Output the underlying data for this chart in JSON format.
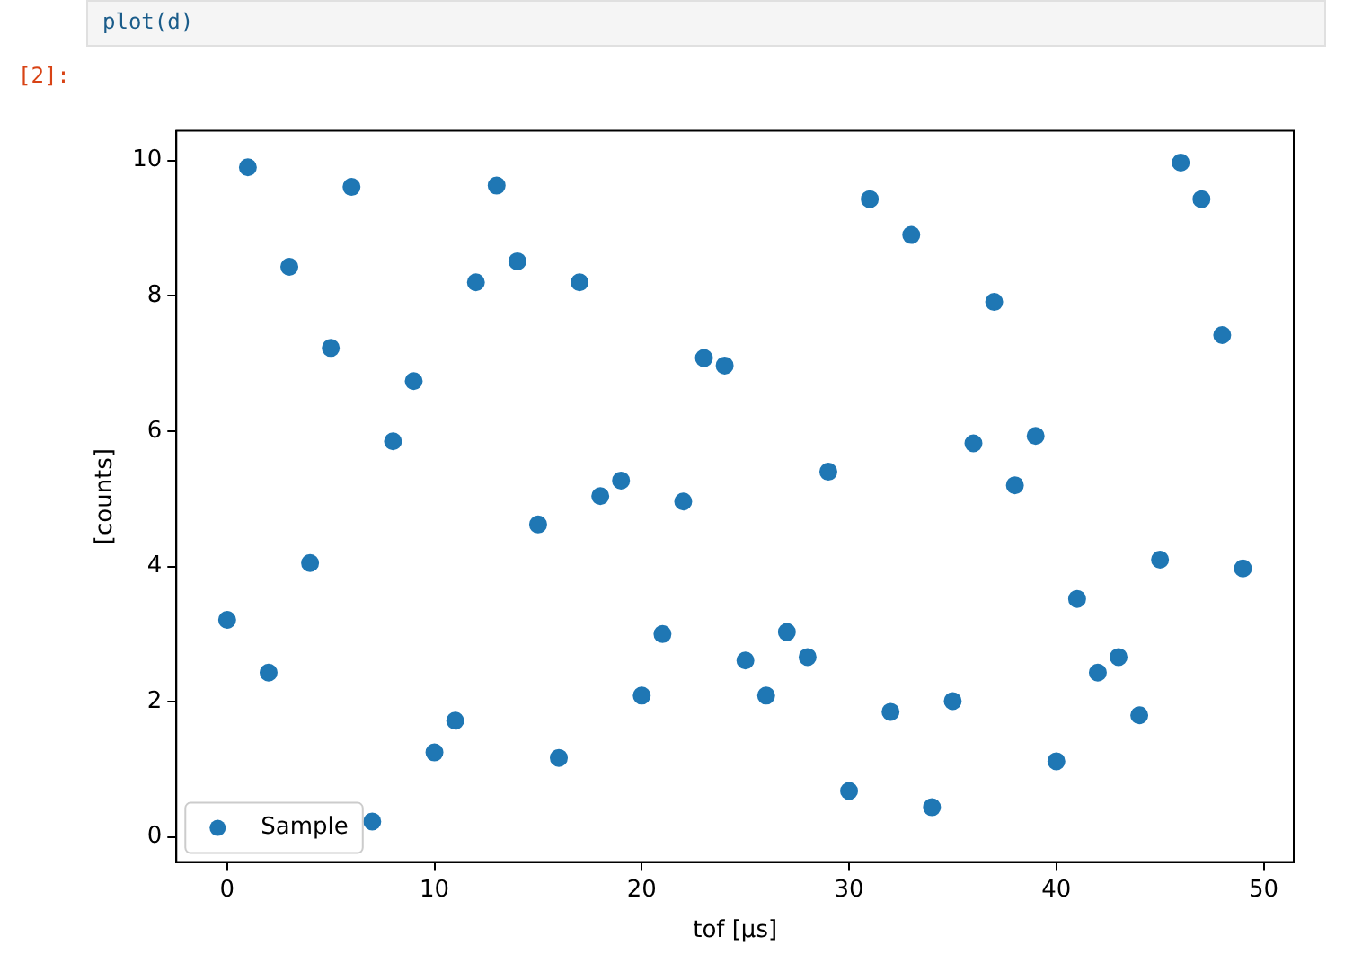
{
  "chart_data": {
    "type": "scatter",
    "xlabel": "tof [μs]",
    "ylabel": "[counts]",
    "annotations": [
      "plot(d)",
      "[2]:"
    ],
    "x": [
      0,
      1,
      2,
      3,
      4,
      5,
      6,
      7,
      8,
      9,
      10,
      11,
      12,
      13,
      14,
      15,
      16,
      17,
      18,
      19,
      20,
      21,
      22,
      23,
      24,
      25,
      26,
      27,
      28,
      29,
      30,
      31,
      32,
      33,
      34,
      35,
      36,
      37,
      38,
      39,
      40,
      41,
      42,
      43,
      44,
      45,
      46,
      47,
      48,
      49
    ],
    "series": [
      {
        "name": "Sample",
        "color": "#1f77b4",
        "values": [
          3.21,
          9.9,
          2.43,
          8.43,
          4.05,
          7.23,
          9.61,
          0.23,
          5.85,
          6.74,
          1.25,
          1.72,
          8.2,
          9.63,
          8.51,
          4.62,
          1.17,
          8.2,
          5.04,
          5.27,
          2.09,
          3.0,
          4.96,
          7.08,
          6.97,
          2.61,
          2.09,
          3.03,
          2.66,
          5.4,
          0.68,
          9.43,
          1.85,
          8.9,
          0.44,
          2.01,
          5.82,
          7.91,
          5.2,
          5.93,
          1.12,
          3.52,
          2.43,
          2.66,
          1.8,
          4.1,
          9.97,
          9.43,
          7.42,
          3.97
        ]
      }
    ],
    "xlim": [
      -2.45,
      51.45
    ],
    "ylim": [
      -0.37,
      10.44
    ],
    "xticks": [
      0,
      10,
      20,
      30,
      40,
      50
    ],
    "yticks": [
      0,
      2,
      4,
      6,
      8,
      10
    ],
    "grid": false,
    "legend": "bottom left",
    "marker": "circle"
  }
}
